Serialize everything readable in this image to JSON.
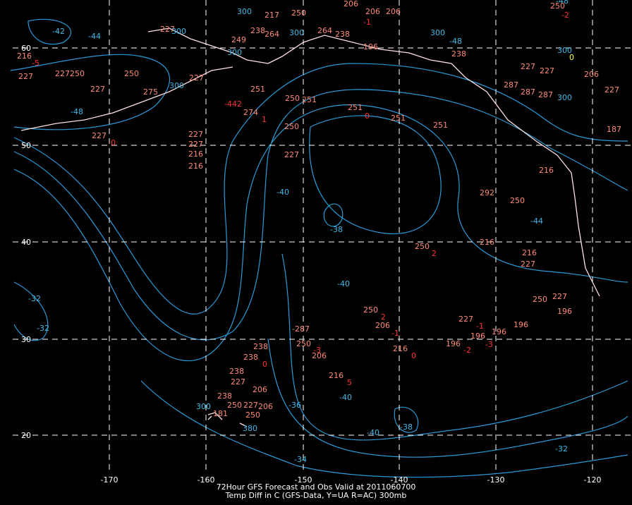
{
  "caption": {
    "line1": "72Hour GFS Forecast and Obs Valid at 2011060700",
    "line2": "Temp Diff in C (GFS-Data, Y=UA R=AC) 300mb"
  },
  "map": {
    "lat_labels": [
      "60",
      "50",
      "40",
      "30",
      "20"
    ],
    "lon_labels": [
      "-170",
      "-160",
      "-150",
      "-140",
      "-130",
      "-120"
    ],
    "labels": [
      "300",
      "217",
      "250",
      "206",
      "206",
      "206",
      "-1",
      "227",
      "300",
      "238",
      "264",
      "300",
      "264",
      "238",
      "300",
      "249",
      "300",
      "196",
      "238",
      "216",
      "-5",
      "227",
      "227250",
      "250",
      "227",
      "227",
      "275",
      "300",
      "251",
      "250",
      "251",
      "-442",
      "274",
      "1",
      "250",
      "251",
      "0",
      "251",
      "251",
      "227",
      "0",
      "227",
      "227",
      "216",
      "216",
      "227",
      "292",
      "250",
      "-44",
      "216",
      "250",
      "2",
      "216",
      "227",
      "-32",
      "-32",
      "-40",
      "-38",
      "-40",
      "250",
      "2",
      "206",
      "-1",
      "227",
      "-1",
      "196",
      "-3",
      "196",
      "-2",
      "196",
      "196",
      "250",
      "227",
      "196",
      "-287",
      "250",
      "-3",
      "206",
      "216",
      "0",
      "238",
      "238",
      "0",
      "238",
      "227",
      "206",
      "216",
      "5",
      "-36",
      "-40",
      "238",
      "250",
      "227",
      "206",
      "300",
      "181",
      "250",
      "380",
      "-40",
      "-38",
      "-34",
      "-32",
      "-42",
      "-44",
      "-48",
      "-48",
      "-48",
      "300",
      "0",
      "227",
      "227",
      "206",
      "227",
      "287",
      "287",
      "287",
      "300",
      "187",
      "216",
      "250",
      "-2"
    ]
  }
}
